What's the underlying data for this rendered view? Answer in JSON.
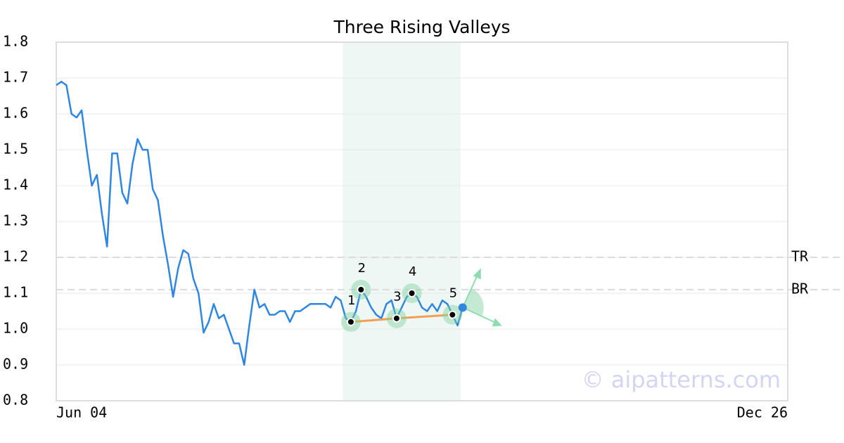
{
  "chart_data": {
    "type": "line",
    "title": "Three Rising Valleys",
    "x": [
      0,
      1,
      2,
      3,
      4,
      5,
      6,
      7,
      8,
      9,
      10,
      11,
      12,
      13,
      14,
      15,
      16,
      17,
      18,
      19,
      20,
      21,
      22,
      23,
      24,
      25,
      26,
      27,
      28,
      29,
      30,
      31,
      32,
      33,
      34,
      35,
      36,
      37,
      38,
      39,
      40,
      41,
      42,
      43,
      44,
      45,
      46,
      47,
      48,
      49,
      50,
      51,
      52,
      53,
      54,
      55,
      56,
      57,
      58,
      59,
      60,
      61,
      62,
      63,
      64,
      65,
      66,
      67,
      68,
      69,
      70,
      71,
      72,
      73,
      74,
      75,
      76,
      77,
      78,
      79,
      80
    ],
    "series": [
      {
        "color": "#2f86e0",
        "values": [
          1.68,
          1.69,
          1.68,
          1.6,
          1.59,
          1.61,
          1.5,
          1.4,
          1.43,
          1.32,
          1.23,
          1.49,
          1.49,
          1.38,
          1.35,
          1.46,
          1.53,
          1.5,
          1.5,
          1.39,
          1.36,
          1.26,
          1.18,
          1.09,
          1.17,
          1.22,
          1.21,
          1.14,
          1.1,
          0.99,
          1.02,
          1.07,
          1.03,
          1.04,
          1.0,
          0.96,
          0.96,
          0.9,
          1.01,
          1.11,
          1.06,
          1.07,
          1.04,
          1.04,
          1.05,
          1.05,
          1.02,
          1.05,
          1.05,
          1.06,
          1.07,
          1.07,
          1.07,
          1.07,
          1.06,
          1.09,
          1.08,
          1.03,
          1.02,
          1.05,
          1.11,
          1.09,
          1.06,
          1.04,
          1.03,
          1.07,
          1.08,
          1.03,
          1.06,
          1.09,
          1.1,
          1.09,
          1.06,
          1.05,
          1.07,
          1.05,
          1.08,
          1.07,
          1.04,
          1.01,
          1.06
        ]
      }
    ],
    "xlim": [
      0,
      144
    ],
    "xticks": [
      {
        "value": 0,
        "label": "Jun 04"
      },
      {
        "value": 144,
        "label": "Dec 26"
      }
    ],
    "ylim": [
      0.8,
      1.8
    ],
    "yticks": [
      {
        "value": 0.8,
        "label": "0.8"
      },
      {
        "value": 0.9,
        "label": "0.9"
      },
      {
        "value": 1.0,
        "label": "1.0"
      },
      {
        "value": 1.1,
        "label": "1.1"
      },
      {
        "value": 1.2,
        "label": "1.2"
      },
      {
        "value": 1.3,
        "label": "1.3"
      },
      {
        "value": 1.4,
        "label": "1.4"
      },
      {
        "value": 1.5,
        "label": "1.5"
      },
      {
        "value": 1.6,
        "label": "1.6"
      },
      {
        "value": 1.7,
        "label": "1.7"
      },
      {
        "value": 1.8,
        "label": "1.8"
      }
    ],
    "grid": true,
    "highlight": [
      56.4,
      79.6
    ],
    "levels": [
      {
        "label": "TR",
        "value": 1.2
      },
      {
        "label": "BR",
        "value": 1.11
      }
    ],
    "pattern_points": [
      {
        "label": "1",
        "x": 58,
        "value": 1.02
      },
      {
        "label": "2",
        "x": 60,
        "value": 1.11
      },
      {
        "label": "3",
        "x": 67,
        "value": 1.03
      },
      {
        "label": "4",
        "x": 70,
        "value": 1.1
      },
      {
        "label": "5",
        "x": 78,
        "value": 1.04
      }
    ],
    "current_point": {
      "x": 80,
      "value": 1.06
    },
    "watermark": "© aipatterns.com"
  }
}
